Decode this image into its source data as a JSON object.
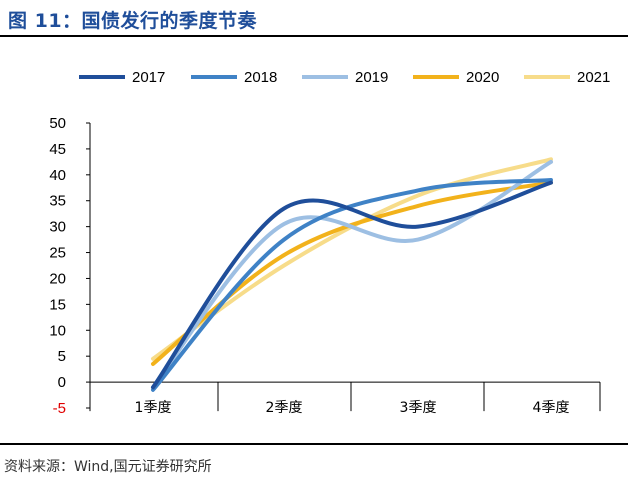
{
  "header": {
    "title": "图 11：国债发行的季度节奏"
  },
  "footer": {
    "source": "资料来源：Wind,国元证券研究所"
  },
  "chart_data": {
    "type": "line",
    "smooth": true,
    "categories": [
      "1季度",
      "2季度",
      "3季度",
      "4季度"
    ],
    "ylim": [
      -5,
      50
    ],
    "yticks": [
      -5,
      0,
      5,
      10,
      15,
      20,
      25,
      30,
      35,
      40,
      45,
      50
    ],
    "negative_tick_color": "#e00000",
    "legend_position": "top",
    "series": [
      {
        "name": "2017",
        "color": "#1f4e9a",
        "values": [
          -1,
          33.5,
          30,
          38.5
        ]
      },
      {
        "name": "2018",
        "color": "#3f82c6",
        "values": [
          -1.5,
          27.5,
          37,
          39
        ]
      },
      {
        "name": "2019",
        "color": "#9dbfe3",
        "values": [
          -1,
          30.5,
          27.5,
          42.5
        ]
      },
      {
        "name": "2020",
        "color": "#f2b21b",
        "values": [
          3.5,
          24.5,
          34,
          38.5
        ]
      },
      {
        "name": "2021",
        "color": "#f7dc8a",
        "values": [
          4.5,
          22.5,
          36,
          43
        ]
      }
    ]
  }
}
